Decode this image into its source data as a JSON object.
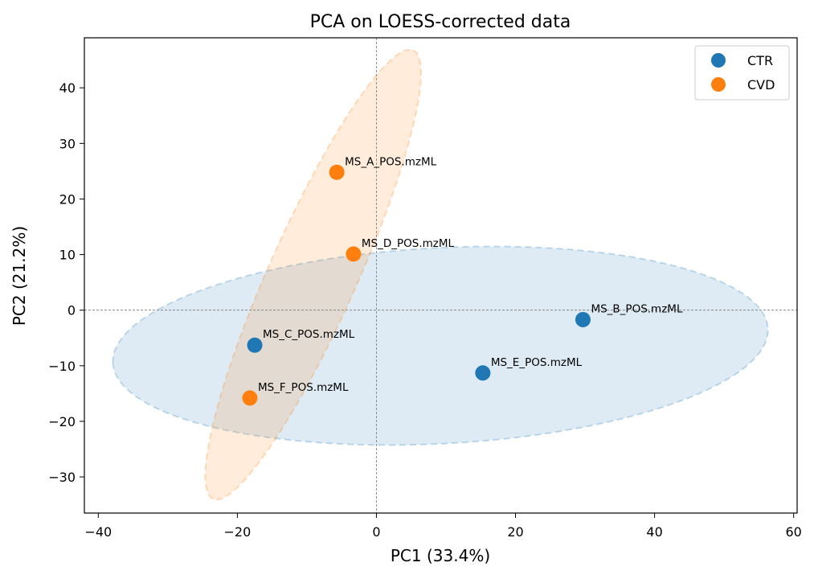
{
  "chart_data": {
    "type": "scatter",
    "title": "PCA on LOESS-corrected data",
    "xlabel": "PC1 (33.4%)",
    "ylabel": "PC2 (21.2%)",
    "xlim": [
      -42,
      60.5
    ],
    "ylim": [
      -36.5,
      49
    ],
    "xticks": [
      -40,
      -20,
      0,
      20,
      40,
      60
    ],
    "yticks": [
      -30,
      -20,
      -10,
      0,
      10,
      20,
      30,
      40
    ],
    "xtick_labels": [
      "−40",
      "−20",
      "0",
      "20",
      "40",
      "60"
    ],
    "ytick_labels": [
      "−30",
      "−20",
      "−10",
      "0",
      "10",
      "20",
      "30",
      "40"
    ],
    "grid": false,
    "reference_lines": {
      "x": 0,
      "y": 0
    },
    "legend_position": "top-right",
    "series": [
      {
        "name": "CTR",
        "color": "#1f77b4",
        "points": [
          {
            "label": "MS_B_POS.mzML",
            "x": 29.7,
            "y": -1.7
          },
          {
            "label": "MS_C_POS.mzML",
            "x": -17.5,
            "y": -6.3
          },
          {
            "label": "MS_E_POS.mzML",
            "x": 15.3,
            "y": -11.3
          }
        ],
        "ellipse": {
          "cx": 9.2,
          "cy": -6.4,
          "points": [
            [
              -37.9,
              -9.5
            ],
            [
              56.3,
              -3.3
            ],
            [
              21.3,
              2.6
            ],
            [
              -2.9,
              -15.4
            ]
          ]
        }
      },
      {
        "name": "CVD",
        "color": "#ff7f0e",
        "points": [
          {
            "label": "MS_A_POS.mzML",
            "x": -5.7,
            "y": 24.8
          },
          {
            "label": "MS_D_POS.mzML",
            "x": -3.3,
            "y": 10.1
          },
          {
            "label": "MS_F_POS.mzML",
            "x": -18.2,
            "y": -15.8
          }
        ],
        "ellipse": {
          "cx": -9.1,
          "cy": 6.4,
          "points": [
            [
              -22.2,
              -33.9
            ],
            [
              6.6,
              46.8
            ],
            [
              -3.5,
              10.1
            ],
            [
              -14.7,
              2.7
            ]
          ]
        }
      }
    ]
  }
}
